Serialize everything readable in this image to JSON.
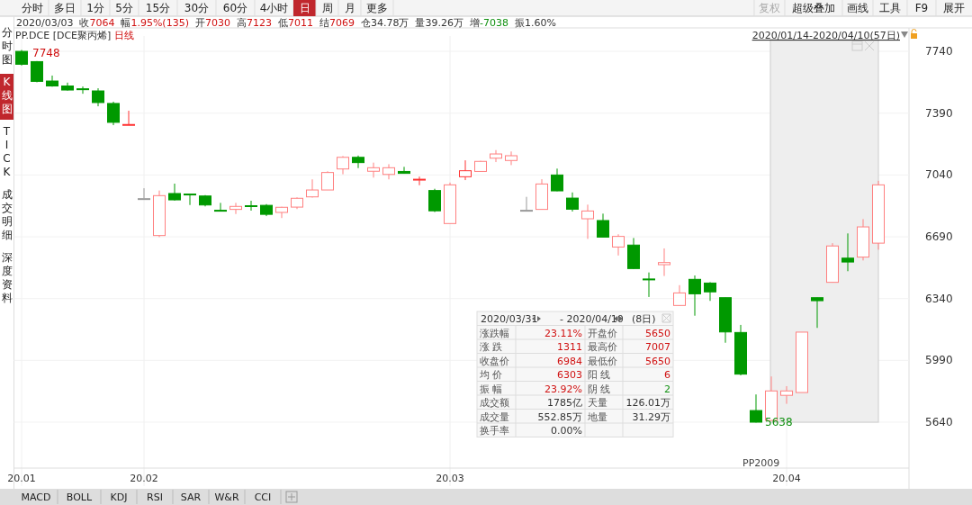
{
  "chart_data": {
    "type": "candlestick",
    "title": "PP.DCE [DCE聚丙烯]",
    "subtitle": "日线",
    "categories": [
      "20.01",
      null,
      null,
      null,
      null,
      null,
      null,
      null,
      "20.02",
      null,
      null,
      null,
      null,
      null,
      null,
      null,
      null,
      null,
      null,
      null,
      null,
      null,
      null,
      null,
      null,
      null,
      null,
      null,
      "20.03",
      null,
      null,
      null,
      null,
      null,
      null,
      null,
      null,
      null,
      null,
      null,
      null,
      null,
      null,
      null,
      null,
      null,
      null,
      null,
      null,
      null,
      "20.04",
      null,
      null,
      null,
      null,
      null,
      null
    ],
    "ohlc": [
      [
        7740,
        7748,
        7660,
        7667
      ],
      [
        7682,
        7685,
        7565,
        7570
      ],
      [
        7572,
        7603,
        7540,
        7544
      ],
      [
        7544,
        7563,
        7518,
        7521
      ],
      [
        7528,
        7541,
        7500,
        7526
      ],
      [
        7516,
        7531,
        7429,
        7450
      ],
      [
        7445,
        7455,
        7322,
        7338
      ],
      [
        7326,
        7404,
        7326,
        7326
      ],
      [
        6906,
        6965,
        6906,
        6906
      ],
      [
        6697,
        6952,
        6688,
        6923
      ],
      [
        6935,
        6991,
        6895,
        6899
      ],
      [
        6932,
        6932,
        6870,
        6928
      ],
      [
        6921,
        6926,
        6862,
        6870
      ],
      [
        6840,
        6882,
        6836,
        6836
      ],
      [
        6845,
        6882,
        6819,
        6862
      ],
      [
        6866,
        6894,
        6838,
        6862
      ],
      [
        6868,
        6875,
        6807,
        6817
      ],
      [
        6828,
        6860,
        6796,
        6857
      ],
      [
        6858,
        6913,
        6847,
        6908
      ],
      [
        6916,
        7015,
        6912,
        6955
      ],
      [
        6955,
        7061,
        6955,
        7054
      ],
      [
        7074,
        7147,
        7044,
        7140
      ],
      [
        7140,
        7150,
        7079,
        7110
      ],
      [
        7061,
        7110,
        7025,
        7081
      ],
      [
        7043,
        7101,
        7015,
        7081
      ],
      [
        7060,
        7086,
        7049,
        7049
      ],
      [
        7013,
        7031,
        6982,
        7016
      ],
      [
        6952,
        6962,
        6830,
        6837
      ],
      [
        6765,
        6997,
        6765,
        6984
      ],
      [
        7030,
        7123,
        7011,
        7064
      ],
      [
        7060,
        7120,
        7058,
        7117
      ],
      [
        7135,
        7181,
        7113,
        7159
      ],
      [
        7122,
        7173,
        7096,
        7149
      ],
      [
        6840,
        6916,
        6840,
        6840
      ],
      [
        6845,
        7016,
        6845,
        6989
      ],
      [
        7040,
        7076,
        6948,
        6950
      ],
      [
        6909,
        6941,
        6833,
        6846
      ],
      [
        6792,
        6872,
        6678,
        6836
      ],
      [
        6782,
        6821,
        6688,
        6688
      ],
      [
        6632,
        6704,
        6584,
        6692
      ],
      [
        6643,
        6683,
        6508,
        6510
      ],
      [
        6451,
        6488,
        6349,
        6449
      ],
      [
        6532,
        6624,
        6468,
        6544
      ],
      [
        6301,
        6416,
        6301,
        6372
      ],
      [
        6449,
        6471,
        6243,
        6367
      ],
      [
        6428,
        6433,
        6327,
        6378
      ],
      [
        6345,
        6345,
        6090,
        6151
      ],
      [
        6148,
        6191,
        5905,
        5912
      ],
      [
        5706,
        5797,
        5638,
        5640
      ],
      [
        5650,
        5899,
        5650,
        5817
      ],
      [
        5792,
        5844,
        5744,
        5817
      ],
      [
        5808,
        6150,
        5808,
        6150
      ],
      [
        6345,
        6345,
        6174,
        6328
      ],
      [
        6432,
        6654,
        6430,
        6638
      ],
      [
        6569,
        6709,
        6495,
        6547
      ],
      [
        6575,
        6790,
        6556,
        6746
      ],
      [
        6654,
        7007,
        6617,
        6984
      ]
    ],
    "colors": [
      "#009900",
      "#009900",
      "#009900",
      "#009900",
      "#009900",
      "#009900",
      "#009900",
      "#ff3333",
      "#999999",
      "#ff8080",
      "#009900",
      "#009900",
      "#009900",
      "#009900",
      "#ff8080",
      "#009900",
      "#009900",
      "#ff8080",
      "#ff8080",
      "#ff8080",
      "#ff8080",
      "#ff8080",
      "#009900",
      "#ff8080",
      "#ff8080",
      "#009900",
      "#ff3333",
      "#009900",
      "#ff8080",
      "#ff3333",
      "#ff8080",
      "#ff8080",
      "#ff8080",
      "#999999",
      "#ff8080",
      "#009900",
      "#009900",
      "#ff8080",
      "#009900",
      "#ff8080",
      "#009900",
      "#009900",
      "#ff8080",
      "#ff8080",
      "#009900",
      "#009900",
      "#009900",
      "#009900",
      "#009900",
      "#ff8080",
      "#ff8080",
      "#ff8080",
      "#009900",
      "#ff8080",
      "#009900",
      "#ff8080",
      "#ff8080"
    ],
    "ylim": [
      5380,
      7827
    ],
    "yticks": [
      5640,
      5990,
      6340,
      6690,
      7040,
      7390,
      7740
    ],
    "grid": true,
    "annotations": [
      "分时",
      "多日",
      "1分",
      "5分",
      "15分",
      "30分",
      "60分",
      "4小时",
      "日",
      "周",
      "月",
      "更多",
      "复权",
      "超级叠加",
      "画线",
      "工具",
      "F9",
      "展开",
      "2020/03/03",
      "收7064",
      "幅1.95%(135)",
      "开7030",
      "高7123",
      "低7011",
      "结7069",
      "仓34.78万",
      "量39.26万",
      "增-7038",
      "振1.60%",
      "分时图",
      "K线图",
      "TICK",
      "成交明细",
      "深度资料",
      "2020/01/14-2020/04/10(57日)",
      "2020/03/31",
      "- 2020/04/10",
      "(8日)",
      "涨跌幅",
      "23.11%",
      "开盘价",
      "5650",
      "涨 跌",
      "1311",
      "最高价",
      "7007",
      "收盘价",
      "6984",
      "最低价",
      "5650",
      "均 价",
      "6303",
      "阳 线",
      "6",
      "振 幅",
      "23.92%",
      "阴 线",
      "2",
      "成交额",
      "1785亿",
      "天量",
      "126.01万",
      "成交量",
      "552.85万",
      "地量",
      "31.29万",
      "换手率",
      "0.00%",
      "PP2009",
      "MACD",
      "BOLL",
      "KDJ",
      "RSI",
      "SAR",
      "W&R",
      "CCI",
      "7748",
      "5638"
    ]
  }
}
